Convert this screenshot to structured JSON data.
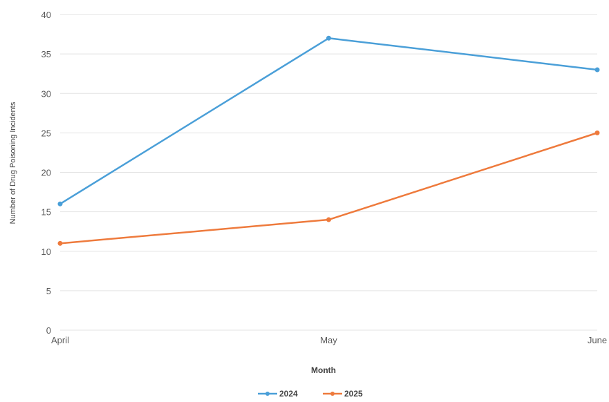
{
  "chart_data": {
    "type": "line",
    "categories": [
      "April",
      "May",
      "June"
    ],
    "series": [
      {
        "name": "2024",
        "values": [
          16,
          37,
          33
        ],
        "color": "#4a9fd8"
      },
      {
        "name": "2025",
        "values": [
          11,
          14,
          25
        ],
        "color": "#ee7a3c"
      }
    ],
    "title": "",
    "xlabel": "Month",
    "ylabel": "Number of Drug Poisoning Incidents",
    "ylim": [
      0,
      40
    ],
    "yticks": [
      0,
      5,
      10,
      15,
      20,
      25,
      30,
      35,
      40
    ],
    "grid": true,
    "legend": "bottom"
  }
}
